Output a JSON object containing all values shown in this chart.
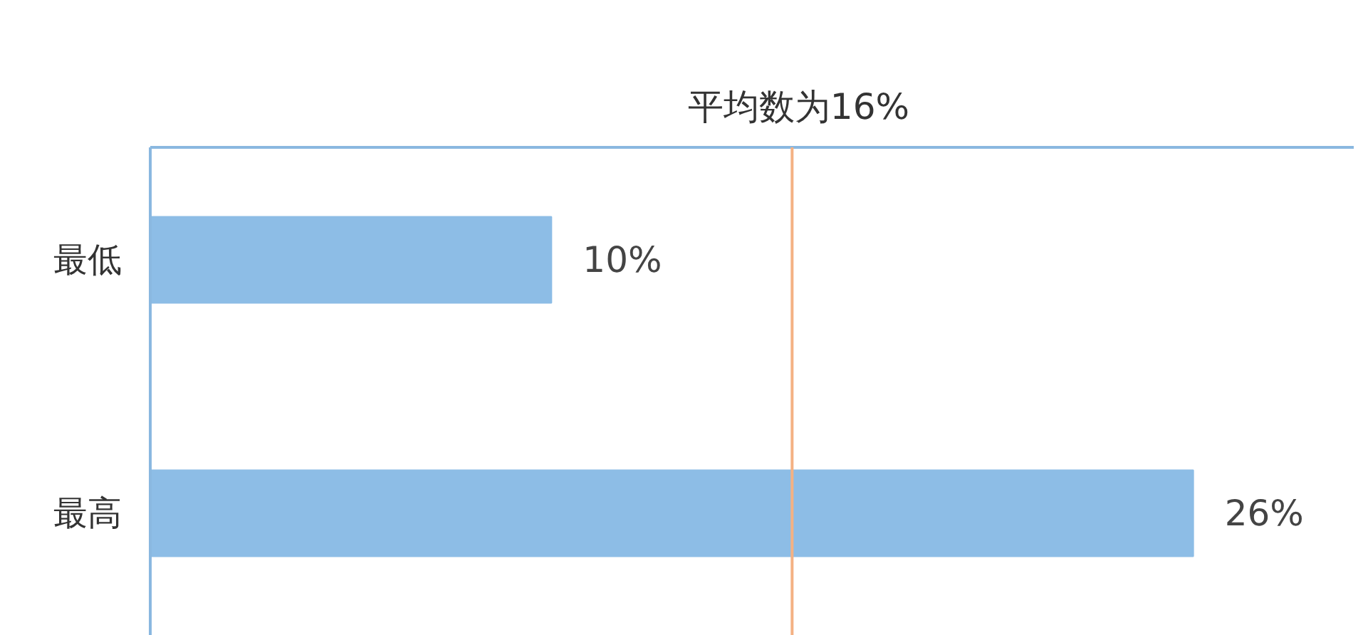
{
  "chart_data": {
    "type": "bar",
    "orientation": "horizontal",
    "categories": [
      "最低",
      "最高"
    ],
    "values": [
      10,
      26
    ],
    "color": "#8dbde6",
    "value_labels": [
      "10%",
      "26%"
    ],
    "xlim": [
      0,
      30
    ],
    "tick_labels": "y",
    "ref_lines": [
      {
        "axis": "x",
        "value": 16,
        "label": "平均数为16%",
        "color": "#f4b183"
      }
    ]
  }
}
